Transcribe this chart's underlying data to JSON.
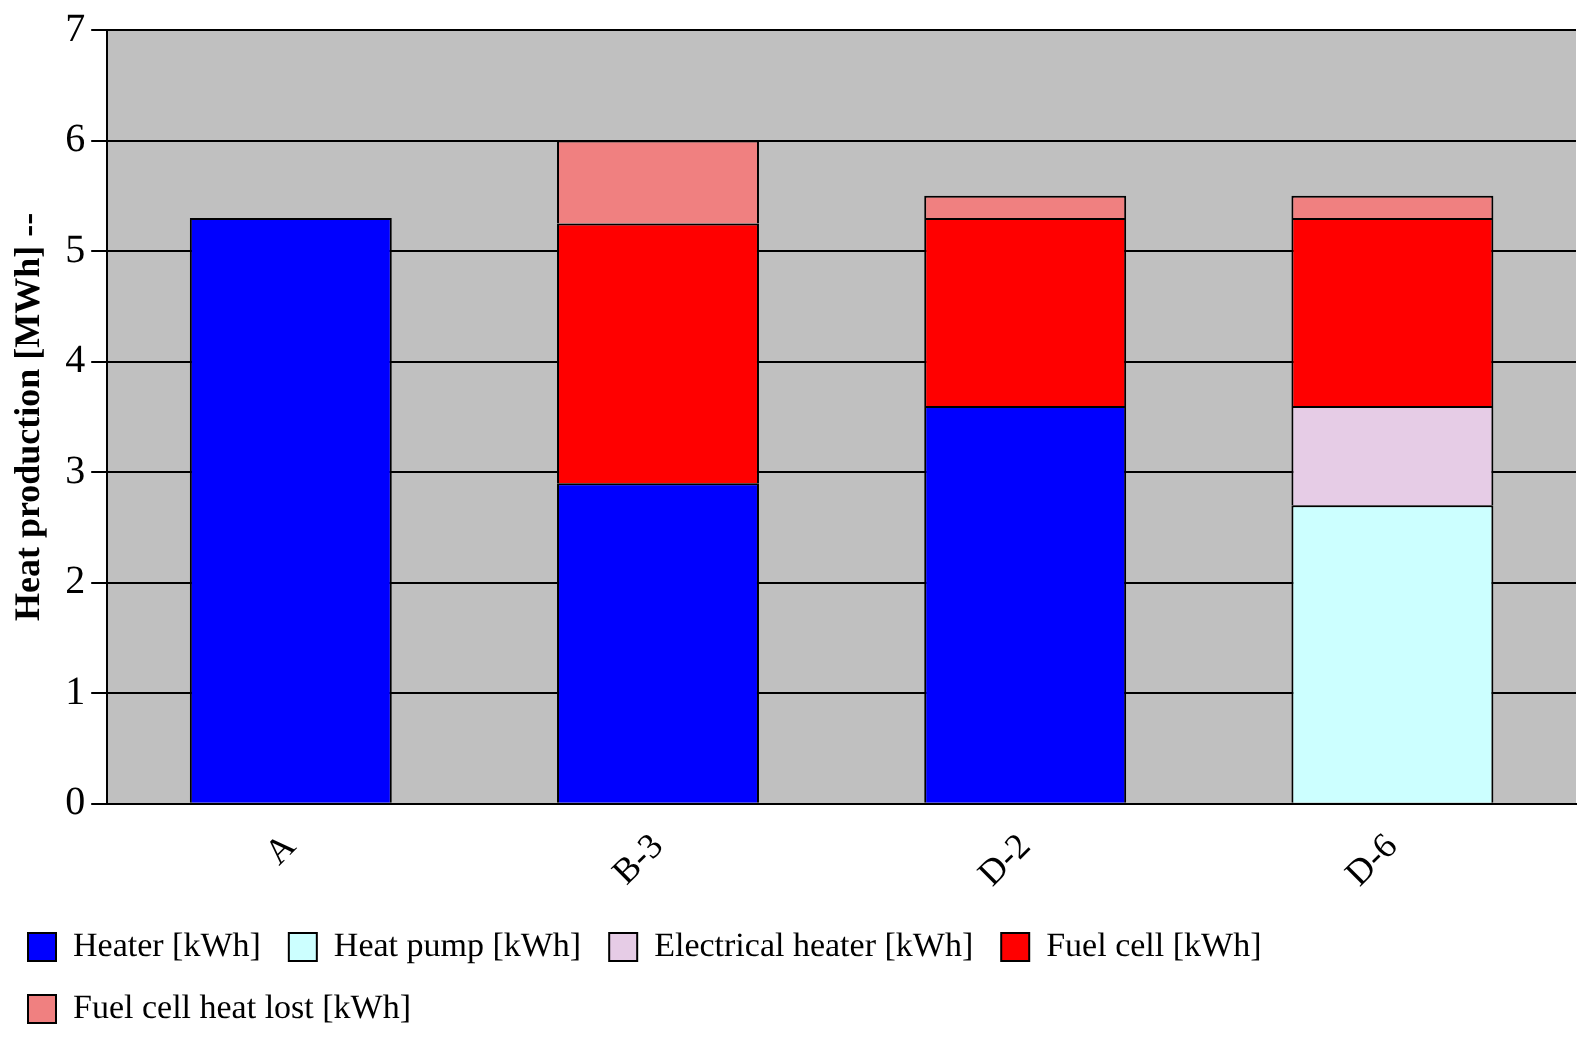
{
  "chart_data": {
    "type": "bar",
    "stacked": true,
    "ylabel": "Heat production [MWh] --",
    "categories": [
      "A",
      "B-3",
      "D-2",
      "D-6"
    ],
    "series": [
      {
        "name": "Heater [kWh]",
        "color": "#0000ff",
        "values": [
          5.3,
          2.9,
          3.6,
          null
        ]
      },
      {
        "name": "Heat pump [kWh]",
        "color": "#ccffff",
        "values": [
          null,
          null,
          null,
          2.7
        ]
      },
      {
        "name": "Electrical heater [kWh]",
        "color": "#e6cce6",
        "values": [
          null,
          null,
          null,
          0.9
        ]
      },
      {
        "name": "Fuel cell [kWh]",
        "color": "#ff0000",
        "values": [
          null,
          2.35,
          1.7,
          1.7
        ]
      },
      {
        "name": "Fuel cell heat lost [kWh]",
        "color": "#f08080",
        "values": [
          null,
          0.75,
          0.2,
          0.2
        ]
      }
    ],
    "ylim": [
      0,
      7
    ],
    "yticks": [
      0,
      1,
      2,
      3,
      4,
      5,
      6,
      7
    ],
    "grid": "y",
    "legend": "bottom"
  }
}
